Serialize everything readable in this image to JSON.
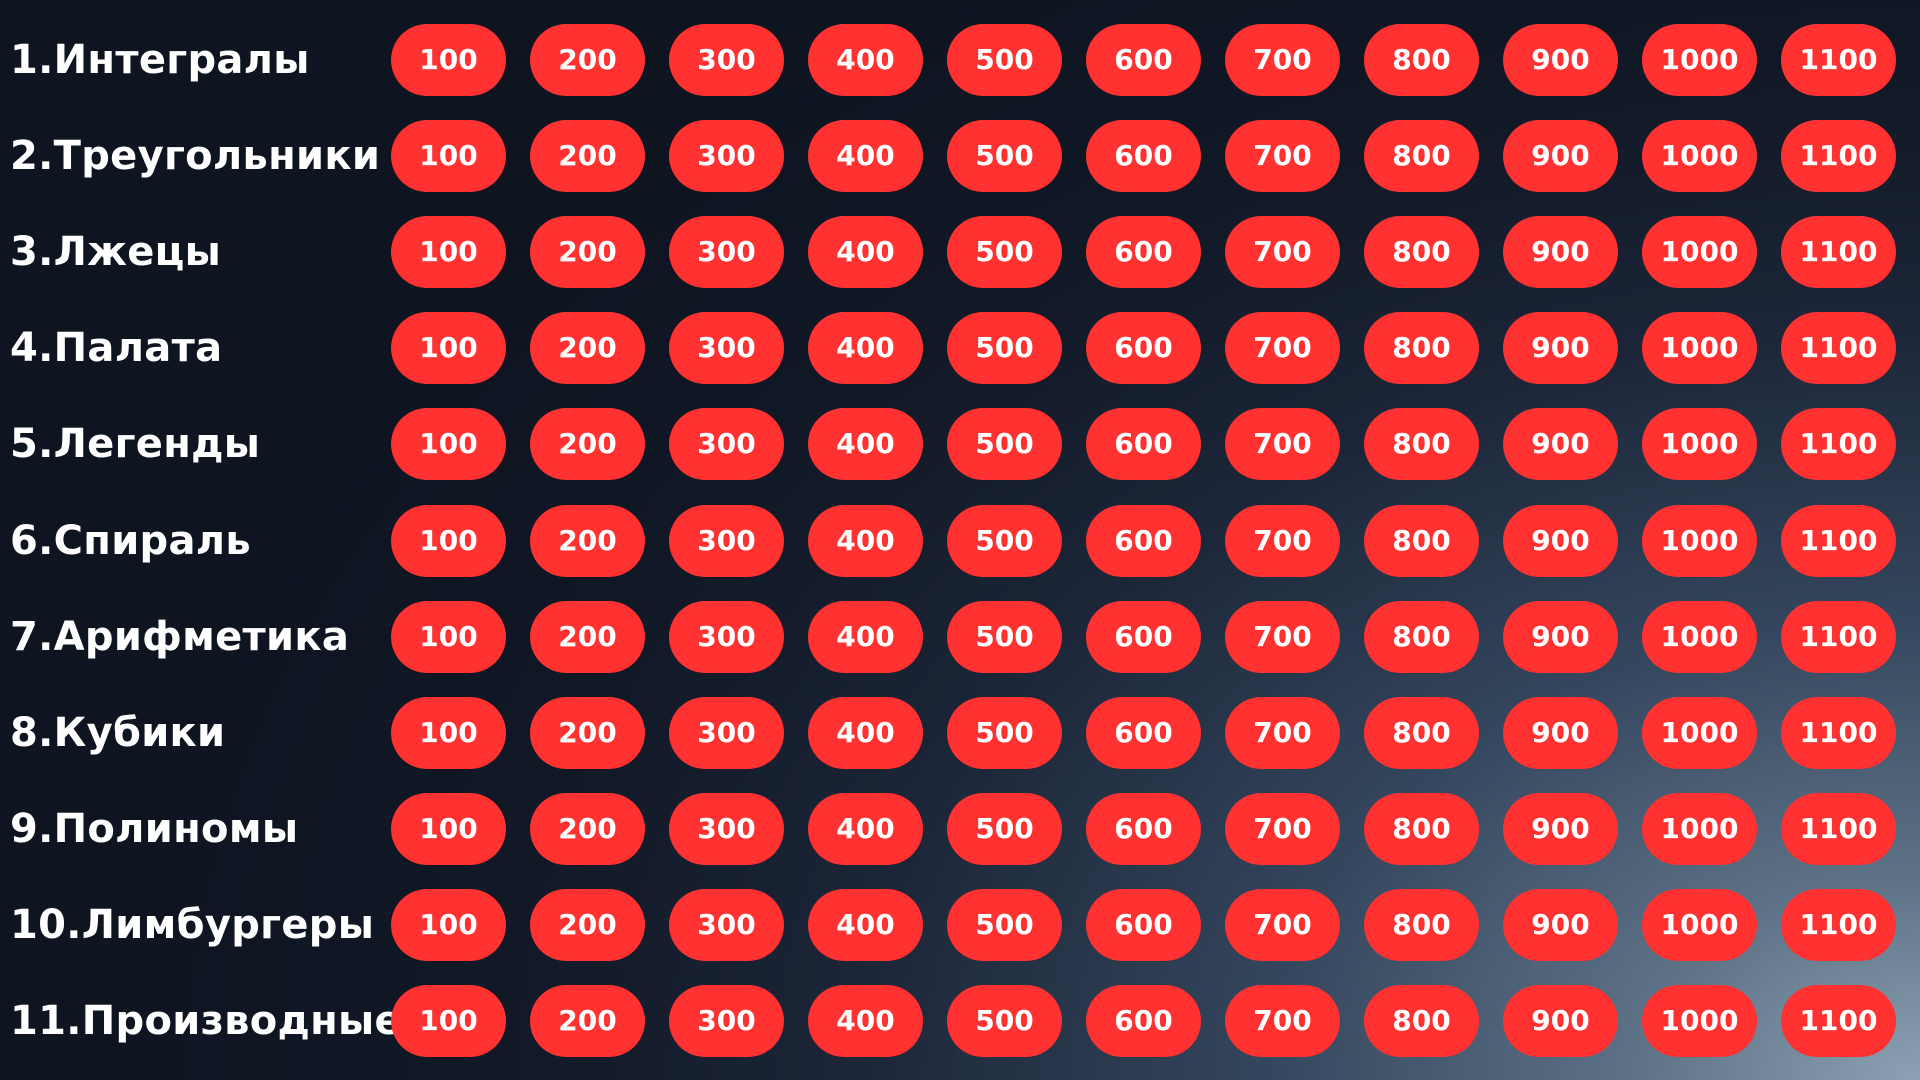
{
  "colors": {
    "cell_background": "#ff3131",
    "cell_text": "#ffffff",
    "category_text": "#ffffff",
    "background_dark": "#0e1420",
    "background_light": "#8da1b4"
  },
  "values": [
    "100",
    "200",
    "300",
    "400",
    "500",
    "600",
    "700",
    "800",
    "900",
    "1000",
    "1100"
  ],
  "categories": [
    {
      "label": "1.Интегралы"
    },
    {
      "label": "2.Треугольники"
    },
    {
      "label": "3.Лжецы"
    },
    {
      "label": "4.Палата"
    },
    {
      "label": "5.Легенды"
    },
    {
      "label": "6.Спираль"
    },
    {
      "label": "7.Арифметика"
    },
    {
      "label": "8.Кубики"
    },
    {
      "label": "9.Полиномы"
    },
    {
      "label": "10.Лимбургеры"
    },
    {
      "label": "11.Производные"
    }
  ]
}
